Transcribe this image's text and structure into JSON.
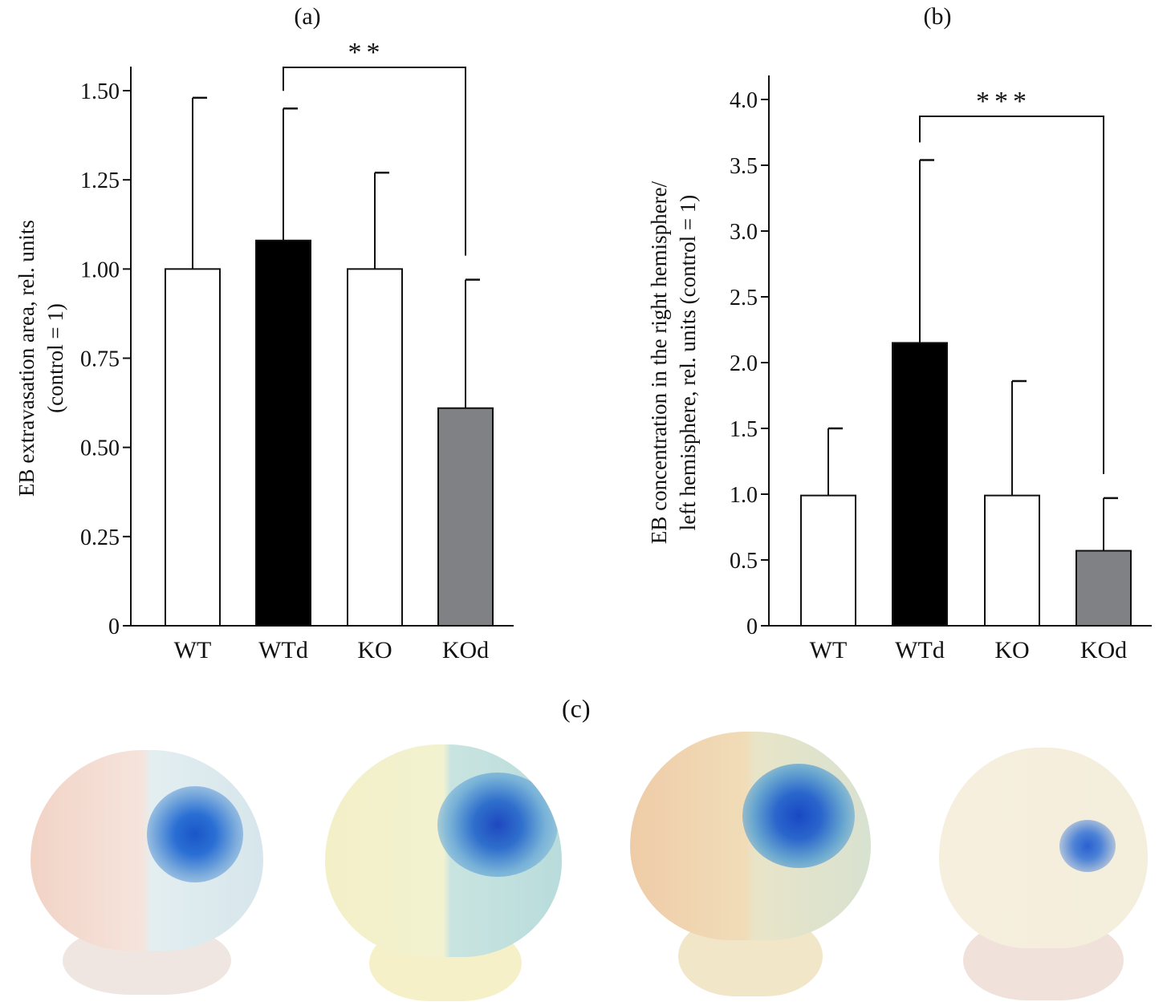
{
  "chart_data": [
    {
      "type": "bar",
      "title": "(a)",
      "ylabel": "EB extravasation area, rel. units",
      "ylabel2": "(control = 1)",
      "xlabel": "",
      "categories": [
        "WT",
        "WTd",
        "KO",
        "KOd"
      ],
      "values": [
        1.0,
        1.08,
        1.0,
        0.61
      ],
      "error_upper": [
        1.48,
        1.45,
        1.27,
        0.97
      ],
      "bar_colors": [
        "#ffffff",
        "#000000",
        "#ffffff",
        "#808184"
      ],
      "ylim": [
        0,
        1.5
      ],
      "yticks": [
        "0",
        "0.25",
        "0.50",
        "0.75",
        "1.00",
        "1.25",
        "1.50"
      ],
      "ytick_values": [
        0,
        0.25,
        0.5,
        0.75,
        1.0,
        1.25,
        1.5
      ],
      "significance": {
        "from": "WTd",
        "to": "KOd",
        "label": "**"
      },
      "grid": false
    },
    {
      "type": "bar",
      "title": "(b)",
      "ylabel": "EB concentration in  the right hemisphere/",
      "ylabel2": "left hemisphere, rel. units (control = 1)",
      "xlabel": "",
      "categories": [
        "WT",
        "WTd",
        "KO",
        "KOd"
      ],
      "values": [
        0.99,
        2.15,
        0.99,
        0.57
      ],
      "error_upper": [
        1.5,
        3.54,
        1.86,
        0.97
      ],
      "bar_colors": [
        "#ffffff",
        "#000000",
        "#ffffff",
        "#808184"
      ],
      "ylim": [
        0,
        4.0
      ],
      "yticks": [
        "0",
        "0.5",
        "1.0",
        "1.5",
        "2.0",
        "2.5",
        "3.0",
        "3.5",
        "4.0"
      ],
      "ytick_values": [
        0,
        0.5,
        1.0,
        1.5,
        2.0,
        2.5,
        3.0,
        3.5,
        4.0
      ],
      "significance": {
        "from": "WTd",
        "to": "KOd",
        "label": "***"
      },
      "grid": false
    }
  ],
  "panel_c": {
    "label": "(c)"
  }
}
